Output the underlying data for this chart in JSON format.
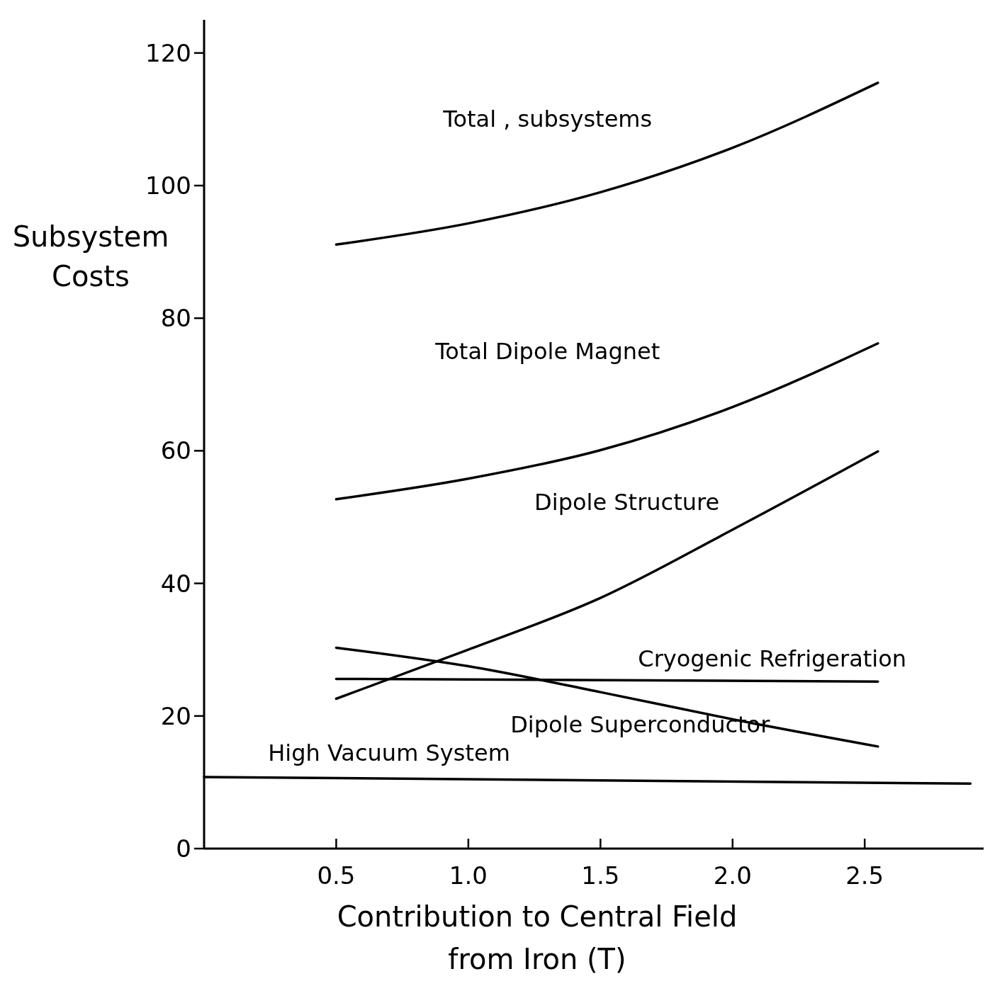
{
  "chart_data": {
    "type": "line",
    "xlabel": "Contribution to Central Field from Iron (T)",
    "ylabel": "Subsystem Costs",
    "xlim": [
      0,
      2.95
    ],
    "ylim": [
      0,
      125
    ],
    "xticks": [
      0.5,
      {
        "value": 1,
        "label": "1.0"
      },
      1.5,
      {
        "value": 2,
        "label": "2.0"
      },
      2.5
    ],
    "yticks": [
      0,
      20,
      40,
      60,
      80,
      100,
      120
    ],
    "grid": false,
    "legend": false,
    "marker": "none",
    "line_style": "solid",
    "series": [
      {
        "name": "Total , subsystems",
        "color": "#000000",
        "x": [
          0.5,
          1.0,
          1.5,
          2.0,
          2.55
        ],
        "values": [
          91.1,
          94.3,
          99,
          105.7,
          115.5
        ]
      },
      {
        "name": "Total Dipole Magnet",
        "color": "#000000",
        "x": [
          0.5,
          1.0,
          1.5,
          2.0,
          2.55
        ],
        "values": [
          52.7,
          55.8,
          60.1,
          66.6,
          76.2
        ]
      },
      {
        "name": "Dipole Structure",
        "color": "#000000",
        "x": [
          0.5,
          1.0,
          1.5,
          2.0,
          2.55
        ],
        "values": [
          22.6,
          30.0,
          37.8,
          48.1,
          59.9
        ]
      },
      {
        "name": "Cryogenic Refrigeration",
        "color": "#000000",
        "x": [
          0.5,
          2.55
        ],
        "values": [
          25.6,
          25.2
        ]
      },
      {
        "name": "Dipole Superconductor",
        "color": "#000000",
        "x": [
          0.5,
          1.0,
          1.5,
          2.0,
          2.55
        ],
        "values": [
          30.3,
          27.5,
          23.6,
          19.5,
          15.4
        ]
      },
      {
        "name": "High Vacuum System",
        "color": "#000000",
        "x": [
          0,
          2.9
        ],
        "values": [
          10.8,
          9.8
        ]
      }
    ]
  }
}
